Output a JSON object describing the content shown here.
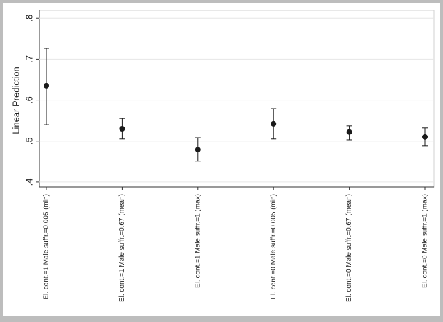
{
  "chart_data": {
    "type": "errorbar",
    "y_label": "Linear Prediction",
    "categories": [
      "El. cont.=1 Male suffr.=0.005 (min)",
      "El. cont.=1 Male suffr.=0.67 (mean)",
      "El. cont.=1 Male suffr.=1 (max)",
      "El. cont.=0 Male suffr.=0.005 (min)",
      "El. cont.=0 Male suffr.=0.67 (mean)",
      "El. cont.=0 Male suffr.=1 (max)"
    ],
    "series": [
      {
        "color": "#1a1a1a",
        "values": [
          0.635,
          0.53,
          0.479,
          0.542,
          0.522,
          0.51
        ],
        "lower": [
          0.54,
          0.505,
          0.451,
          0.505,
          0.503,
          0.488
        ],
        "upper": [
          0.726,
          0.555,
          0.508,
          0.579,
          0.537,
          0.532
        ]
      }
    ],
    "ylim": [
      0.388,
      0.819
    ],
    "yticks": [
      {
        "value": 0.4,
        "label": ".4"
      },
      {
        "value": 0.5,
        "label": ".5"
      },
      {
        "value": 0.6,
        "label": ".6"
      },
      {
        "value": 0.7,
        "label": ".7"
      },
      {
        "value": 0.8,
        "label": ".8"
      }
    ],
    "grid": true
  }
}
